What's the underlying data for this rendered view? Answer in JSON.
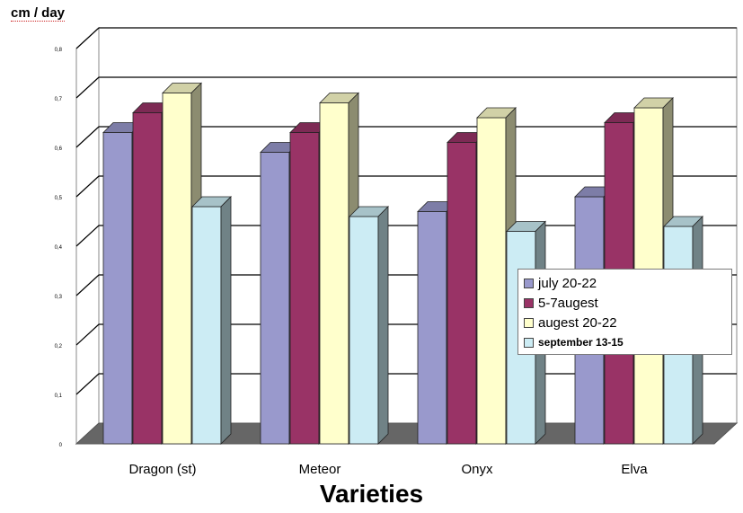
{
  "chart_data": {
    "type": "bar",
    "ylabel": "cm / day",
    "xlabel": "Varieties",
    "categories": [
      "Dragon (st)",
      "Meteor",
      "Onyx",
      "Elva"
    ],
    "y_ticks": [
      "0",
      "0,1",
      "0,2",
      "0,3",
      "0,4",
      "0,5",
      "0,6",
      "0,7",
      "0,8"
    ],
    "ylim": [
      0,
      0.8
    ],
    "grid": true,
    "legend_position": "right",
    "series": [
      {
        "name": "july 20-22",
        "color": "#9999cc",
        "values": [
          0.63,
          0.59,
          0.47,
          0.5
        ]
      },
      {
        "name": "5-7augest",
        "color": "#993366",
        "values": [
          0.67,
          0.63,
          0.61,
          0.65
        ]
      },
      {
        "name": "augest 20-22",
        "color": "#ffffcc",
        "values": [
          0.71,
          0.69,
          0.66,
          0.68
        ]
      },
      {
        "name": "september  13-15",
        "color": "#ccecf4",
        "values": [
          0.48,
          0.46,
          0.43,
          0.44
        ]
      }
    ]
  }
}
